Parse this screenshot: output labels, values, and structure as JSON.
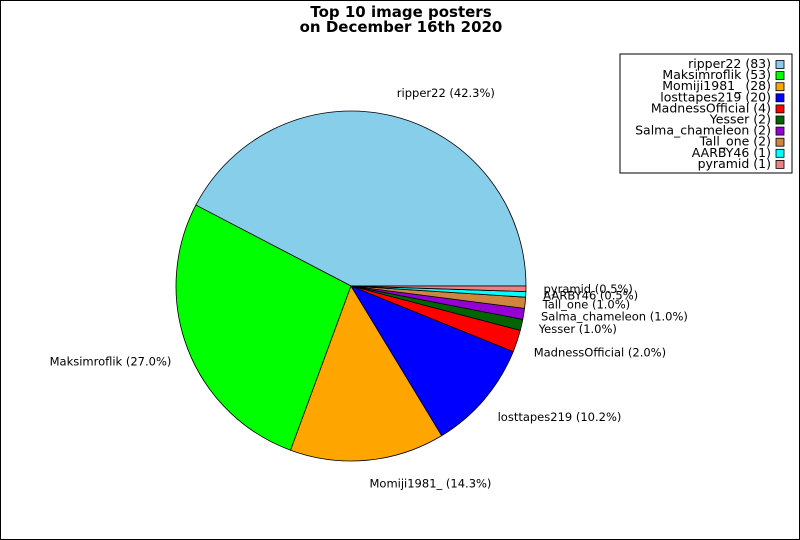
{
  "chart_data": {
    "type": "pie",
    "title_lines": [
      "Top 10 image posters",
      "on December 16th 2020"
    ],
    "slices": [
      {
        "label": "ripper22",
        "value": 83,
        "pct_label": "ripper22 (42.3%)",
        "legend_label": "ripper22 (83)",
        "color": "#87ceeb"
      },
      {
        "label": "Maksimroflik",
        "value": 53,
        "pct_label": "Maksimroflik (27.0%)",
        "legend_label": "Maksimroflik (53)",
        "color": "#00ff00"
      },
      {
        "label": "Momiji1981_",
        "value": 28,
        "pct_label": "Momiji1981_ (14.3%)",
        "legend_label": "Momiji1981_ (28)",
        "color": "#ffa500"
      },
      {
        "label": "losttapes219",
        "value": 20,
        "pct_label": "losttapes219 (10.2%)",
        "legend_label": "losttapes219 (20)",
        "color": "#0000ff"
      },
      {
        "label": "MadnessOfficial",
        "value": 4,
        "pct_label": "MadnessOfficial (2.0%)",
        "legend_label": "MadnessOfficial (4)",
        "color": "#ff0000"
      },
      {
        "label": "Yesser",
        "value": 2,
        "pct_label": "Yesser (1.0%)",
        "legend_label": "Yesser (2)",
        "color": "#006400"
      },
      {
        "label": "Salma_chameleon",
        "value": 2,
        "pct_label": "Salma_chameleon (1.0%)",
        "legend_label": "Salma_chameleon (2)",
        "color": "#9400d3"
      },
      {
        "label": "Tall_one",
        "value": 2,
        "pct_label": "Tall_one (1.0%)",
        "legend_label": "Tall_one (2)",
        "color": "#cd853f"
      },
      {
        "label": "AARBY46",
        "value": 1,
        "pct_label": "AARBY46 (0.5%)",
        "legend_label": "AARBY46 (1)",
        "color": "#00ffff"
      },
      {
        "label": "pyramid",
        "value": 1,
        "pct_label": "pyramid (0.5%)",
        "legend_label": "pyramid (1)",
        "color": "#f08080"
      }
    ],
    "start_angle_deg": 0,
    "direction": "counterclockwise",
    "legend_position": "top-right"
  }
}
